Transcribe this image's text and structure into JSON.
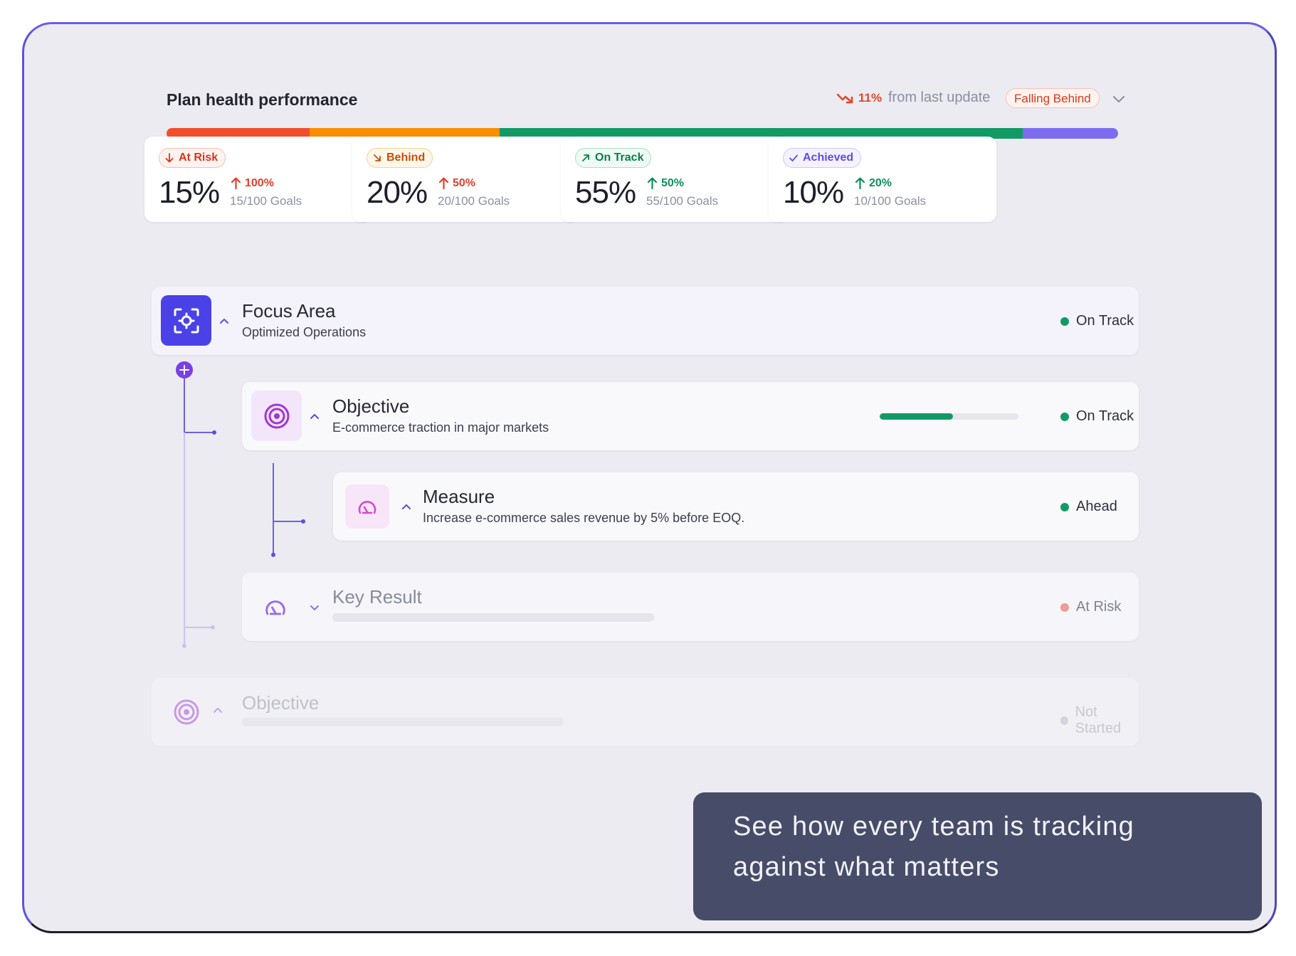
{
  "header": {
    "title": "Plan health performance",
    "delta_value": "11%",
    "delta_text": "from last update",
    "status_pill": "Falling Behind"
  },
  "health_bar": {
    "segments": [
      {
        "name": "At Risk",
        "percent": 15,
        "color": "#f24e2c"
      },
      {
        "name": "Behind",
        "percent": 20,
        "color": "#fb8c00"
      },
      {
        "name": "On Track",
        "percent": 55,
        "color": "#129a65"
      },
      {
        "name": "Achieved",
        "percent": 10,
        "color": "#7e6cf0"
      }
    ]
  },
  "stats": [
    {
      "label": "At Risk",
      "percent": "15%",
      "change": "100%",
      "goals": "15/100 Goals",
      "color": "#d8351e",
      "border": "#f5bdb2",
      "bg": "#fff3f0",
      "change_color": "#e2402a"
    },
    {
      "label": "Behind",
      "percent": "20%",
      "change": "50%",
      "goals": "20/100 Goals",
      "color": "#c94e06",
      "border": "#f8cf92",
      "bg": "#fff7ea",
      "change_color": "#e2402a"
    },
    {
      "label": "On Track",
      "percent": "55%",
      "change": "50%",
      "goals": "55/100 Goals",
      "color": "#0b7d52",
      "border": "#a7dfc4",
      "bg": "#effaf4",
      "change_color": "#0e8e5c"
    },
    {
      "label": "Achieved",
      "percent": "10%",
      "change": "20%",
      "goals": "10/100 Goals",
      "color": "#5f4de0",
      "border": "#cfc8fa",
      "bg": "#f4f2ff",
      "change_color": "#0e8e5c"
    }
  ],
  "tree": {
    "focus_area": {
      "title": "Focus Area",
      "subtitle": "Optimized Operations",
      "status": "On Track",
      "status_color": "#129a65"
    },
    "objective": {
      "title": "Objective",
      "subtitle": "E-commerce traction in major markets",
      "status": "On Track",
      "status_color": "#129a65",
      "progress": 0.53
    },
    "measure": {
      "title": "Measure",
      "subtitle": "Increase e-commerce sales revenue by 5% before EOQ.",
      "status": "Ahead",
      "status_color": "#129a65"
    },
    "key_result": {
      "title": "Key Result",
      "status": "At Risk",
      "status_color": "#ef8f84"
    },
    "objective_2": {
      "title": "Objective",
      "status": "Not Started",
      "status_color": "#c9cad3"
    }
  },
  "caption": {
    "line1": "See how every team is tracking",
    "line2": "against what matters"
  }
}
